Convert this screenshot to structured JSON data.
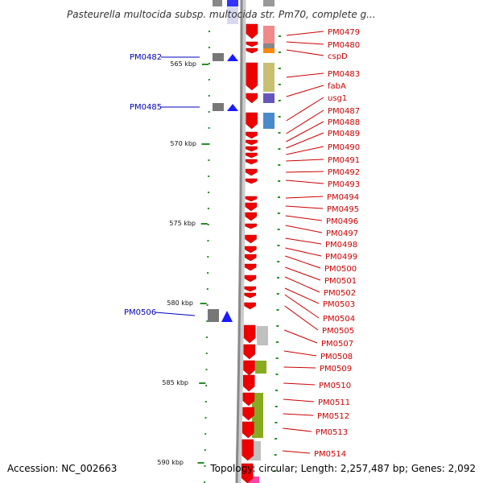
{
  "title": "Pasteurella multocida subsp. multocida str. Pm70, complete g...",
  "accession": "Accession: NC_002663",
  "topology": "Topology: circular; Length: 2,257,487 bp; Genes: 2,092",
  "ticks": [
    "565 kbp",
    "570 kbp",
    "575 kbp",
    "580 kbp",
    "585 kbp",
    "590 kbp"
  ],
  "left_genes": [
    "PM0482",
    "PM0485",
    "PM0506"
  ],
  "right_genes": [
    "PM0479",
    "PM0480",
    "cspD",
    "PM0483",
    "fabA",
    "usg1",
    "PM0487",
    "PM0488",
    "PM0489",
    "PM0490",
    "PM0491",
    "PM0492",
    "PM0493",
    "PM0494",
    "PM0495",
    "PM0496",
    "PM0497",
    "PM0498",
    "PM0499",
    "PM0500",
    "PM0501",
    "PM0502",
    "PM0503",
    "PM0504",
    "PM0505",
    "PM0507",
    "PM0508",
    "PM0509",
    "PM0510",
    "PM0511",
    "PM0512",
    "PM0513",
    "PM0514"
  ],
  "colors": {
    "backbone": "#8a8a8a",
    "forward_gene": "#ee0000",
    "reverse_gene": "#1a1aff",
    "label_right": "#cc0000",
    "label_left": "#0000bb",
    "tick": "#2a8a2a"
  }
}
